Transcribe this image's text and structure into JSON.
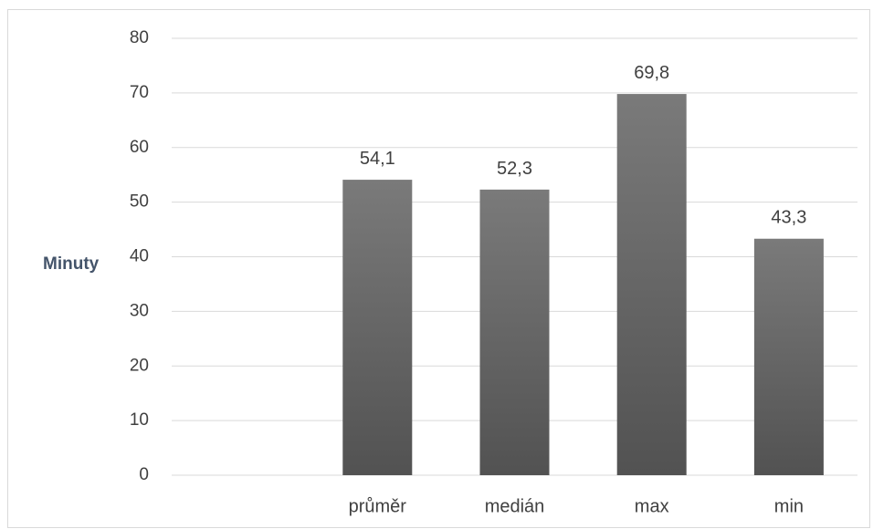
{
  "chart_data": {
    "type": "bar",
    "categories": [
      "",
      "průměr",
      "medián",
      "max",
      "min"
    ],
    "values": [
      null,
      54.1,
      52.3,
      69.8,
      43.3
    ],
    "data_labels": [
      "",
      "54,1",
      "52,3",
      "69,8",
      "43,3"
    ],
    "title": "",
    "xlabel": "",
    "ylabel": "Minuty",
    "ylim": [
      0,
      80
    ],
    "yticks": [
      0,
      10,
      20,
      30,
      40,
      50,
      60,
      70,
      80
    ],
    "grid": true,
    "legend": "none",
    "colors": {
      "bar_top": "#7a7a7a",
      "bar_bottom": "#525252",
      "grid": "#d9d9d9",
      "text": "#404040",
      "axis_title": "#44546a"
    }
  }
}
